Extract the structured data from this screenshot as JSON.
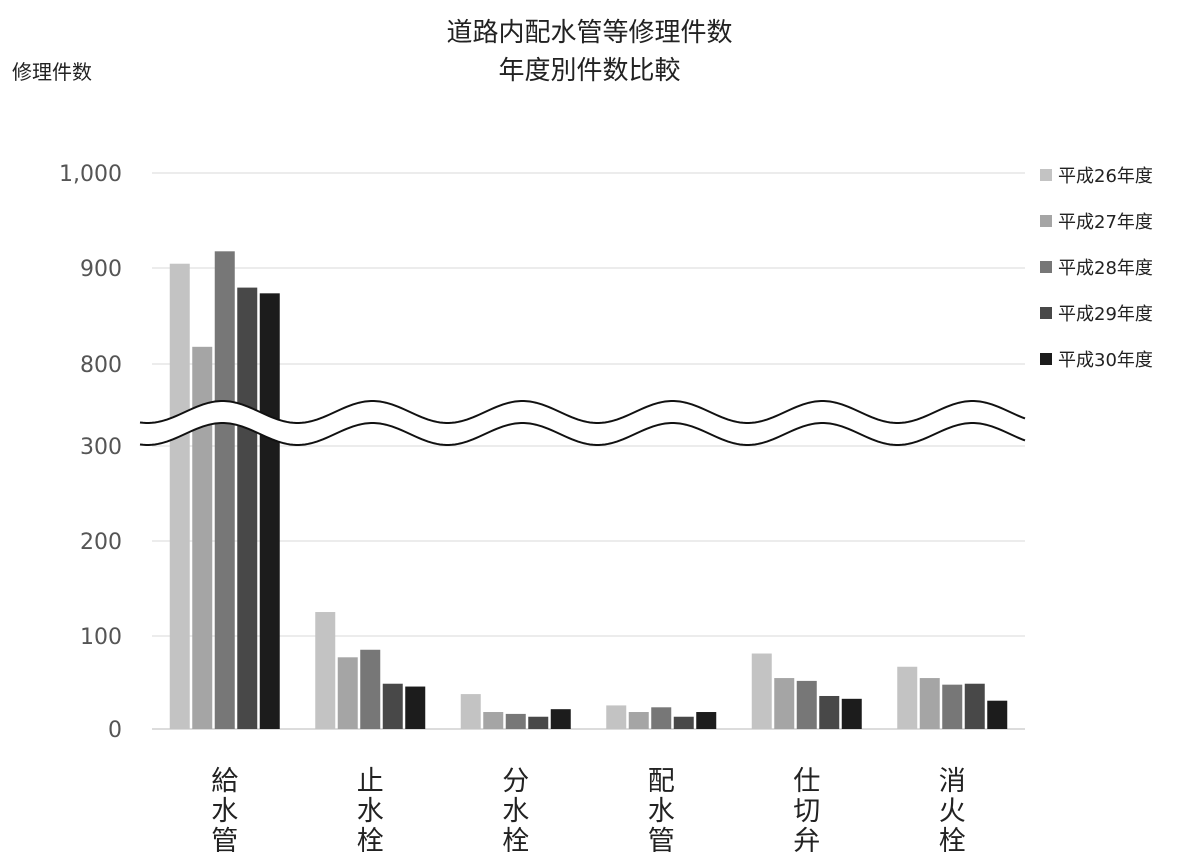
{
  "chart_data": {
    "type": "bar",
    "title": [
      "道路内配水管等修理件数",
      "年度別件数比較"
    ],
    "ylabel": "修理件数",
    "ytick_labels": [
      "0",
      "100",
      "200",
      "300",
      "800",
      "900",
      "1,000"
    ],
    "ytick_values": [
      0,
      100,
      200,
      300,
      800,
      900,
      1000
    ],
    "axis_break": [
      300,
      800
    ],
    "ylim": [
      0,
      1000
    ],
    "grid": true,
    "legend_position": "right",
    "categories": [
      "給水管",
      "止水栓",
      "分水栓",
      "配水管",
      "仕切弁",
      "消火栓"
    ],
    "series": [
      {
        "name": "平成26年度",
        "color": "#c3c3c3",
        "values": [
          905,
          124,
          37,
          25,
          80,
          66
        ]
      },
      {
        "name": "平成27年度",
        "color": "#a5a5a5",
        "values": [
          818,
          76,
          18,
          18,
          54,
          54
        ]
      },
      {
        "name": "平成28年度",
        "color": "#777777",
        "values": [
          918,
          84,
          16,
          23,
          51,
          47
        ]
      },
      {
        "name": "平成29年度",
        "color": "#484848",
        "values": [
          880,
          48,
          13,
          13,
          35,
          48
        ]
      },
      {
        "name": "平成30年度",
        "color": "#1c1c1c",
        "values": [
          874,
          45,
          21,
          18,
          32,
          30
        ]
      }
    ]
  }
}
